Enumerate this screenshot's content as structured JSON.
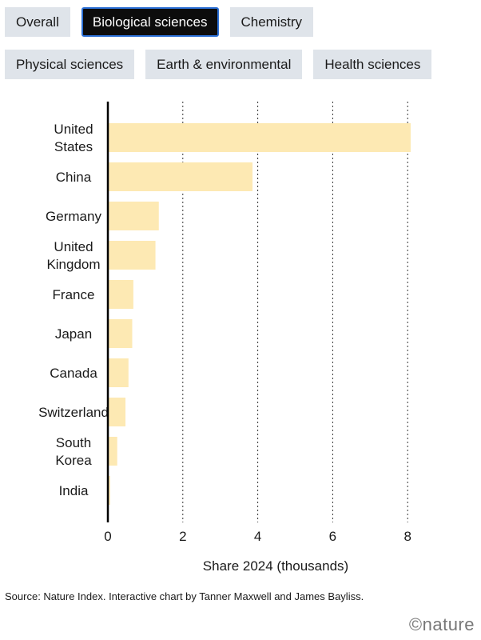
{
  "filters": {
    "row1": [
      {
        "label": "Overall",
        "active": false
      },
      {
        "label": "Biological sciences",
        "active": true
      },
      {
        "label": "Chemistry",
        "active": false
      }
    ],
    "row2": [
      {
        "label": "Physical sciences",
        "active": false
      },
      {
        "label": "Earth & environmental",
        "active": false
      },
      {
        "label": "Health sciences",
        "active": false
      }
    ]
  },
  "chart_data": {
    "type": "bar",
    "orientation": "horizontal",
    "categories": [
      [
        "United",
        "States"
      ],
      [
        "China"
      ],
      [
        "Germany"
      ],
      [
        "United",
        "Kingdom"
      ],
      [
        "France"
      ],
      [
        "Japan"
      ],
      [
        "Canada"
      ],
      [
        "Switzerland"
      ],
      [
        "South",
        "Korea"
      ],
      [
        "India"
      ]
    ],
    "values": [
      8.08,
      3.86,
      1.36,
      1.27,
      0.68,
      0.65,
      0.55,
      0.47,
      0.25,
      0.06
    ],
    "xlabel": "Share 2024 (thousands)",
    "xlim": [
      0,
      8.5
    ],
    "xticks": [
      "0",
      "2",
      "4",
      "6",
      "8"
    ],
    "grid": "vertical dotted",
    "bar_color": "#fde9b3"
  },
  "footer": {
    "source": "Source: Nature Index. Interactive chart by Tanner Maxwell and James Bayliss.",
    "logo": "©nature"
  }
}
